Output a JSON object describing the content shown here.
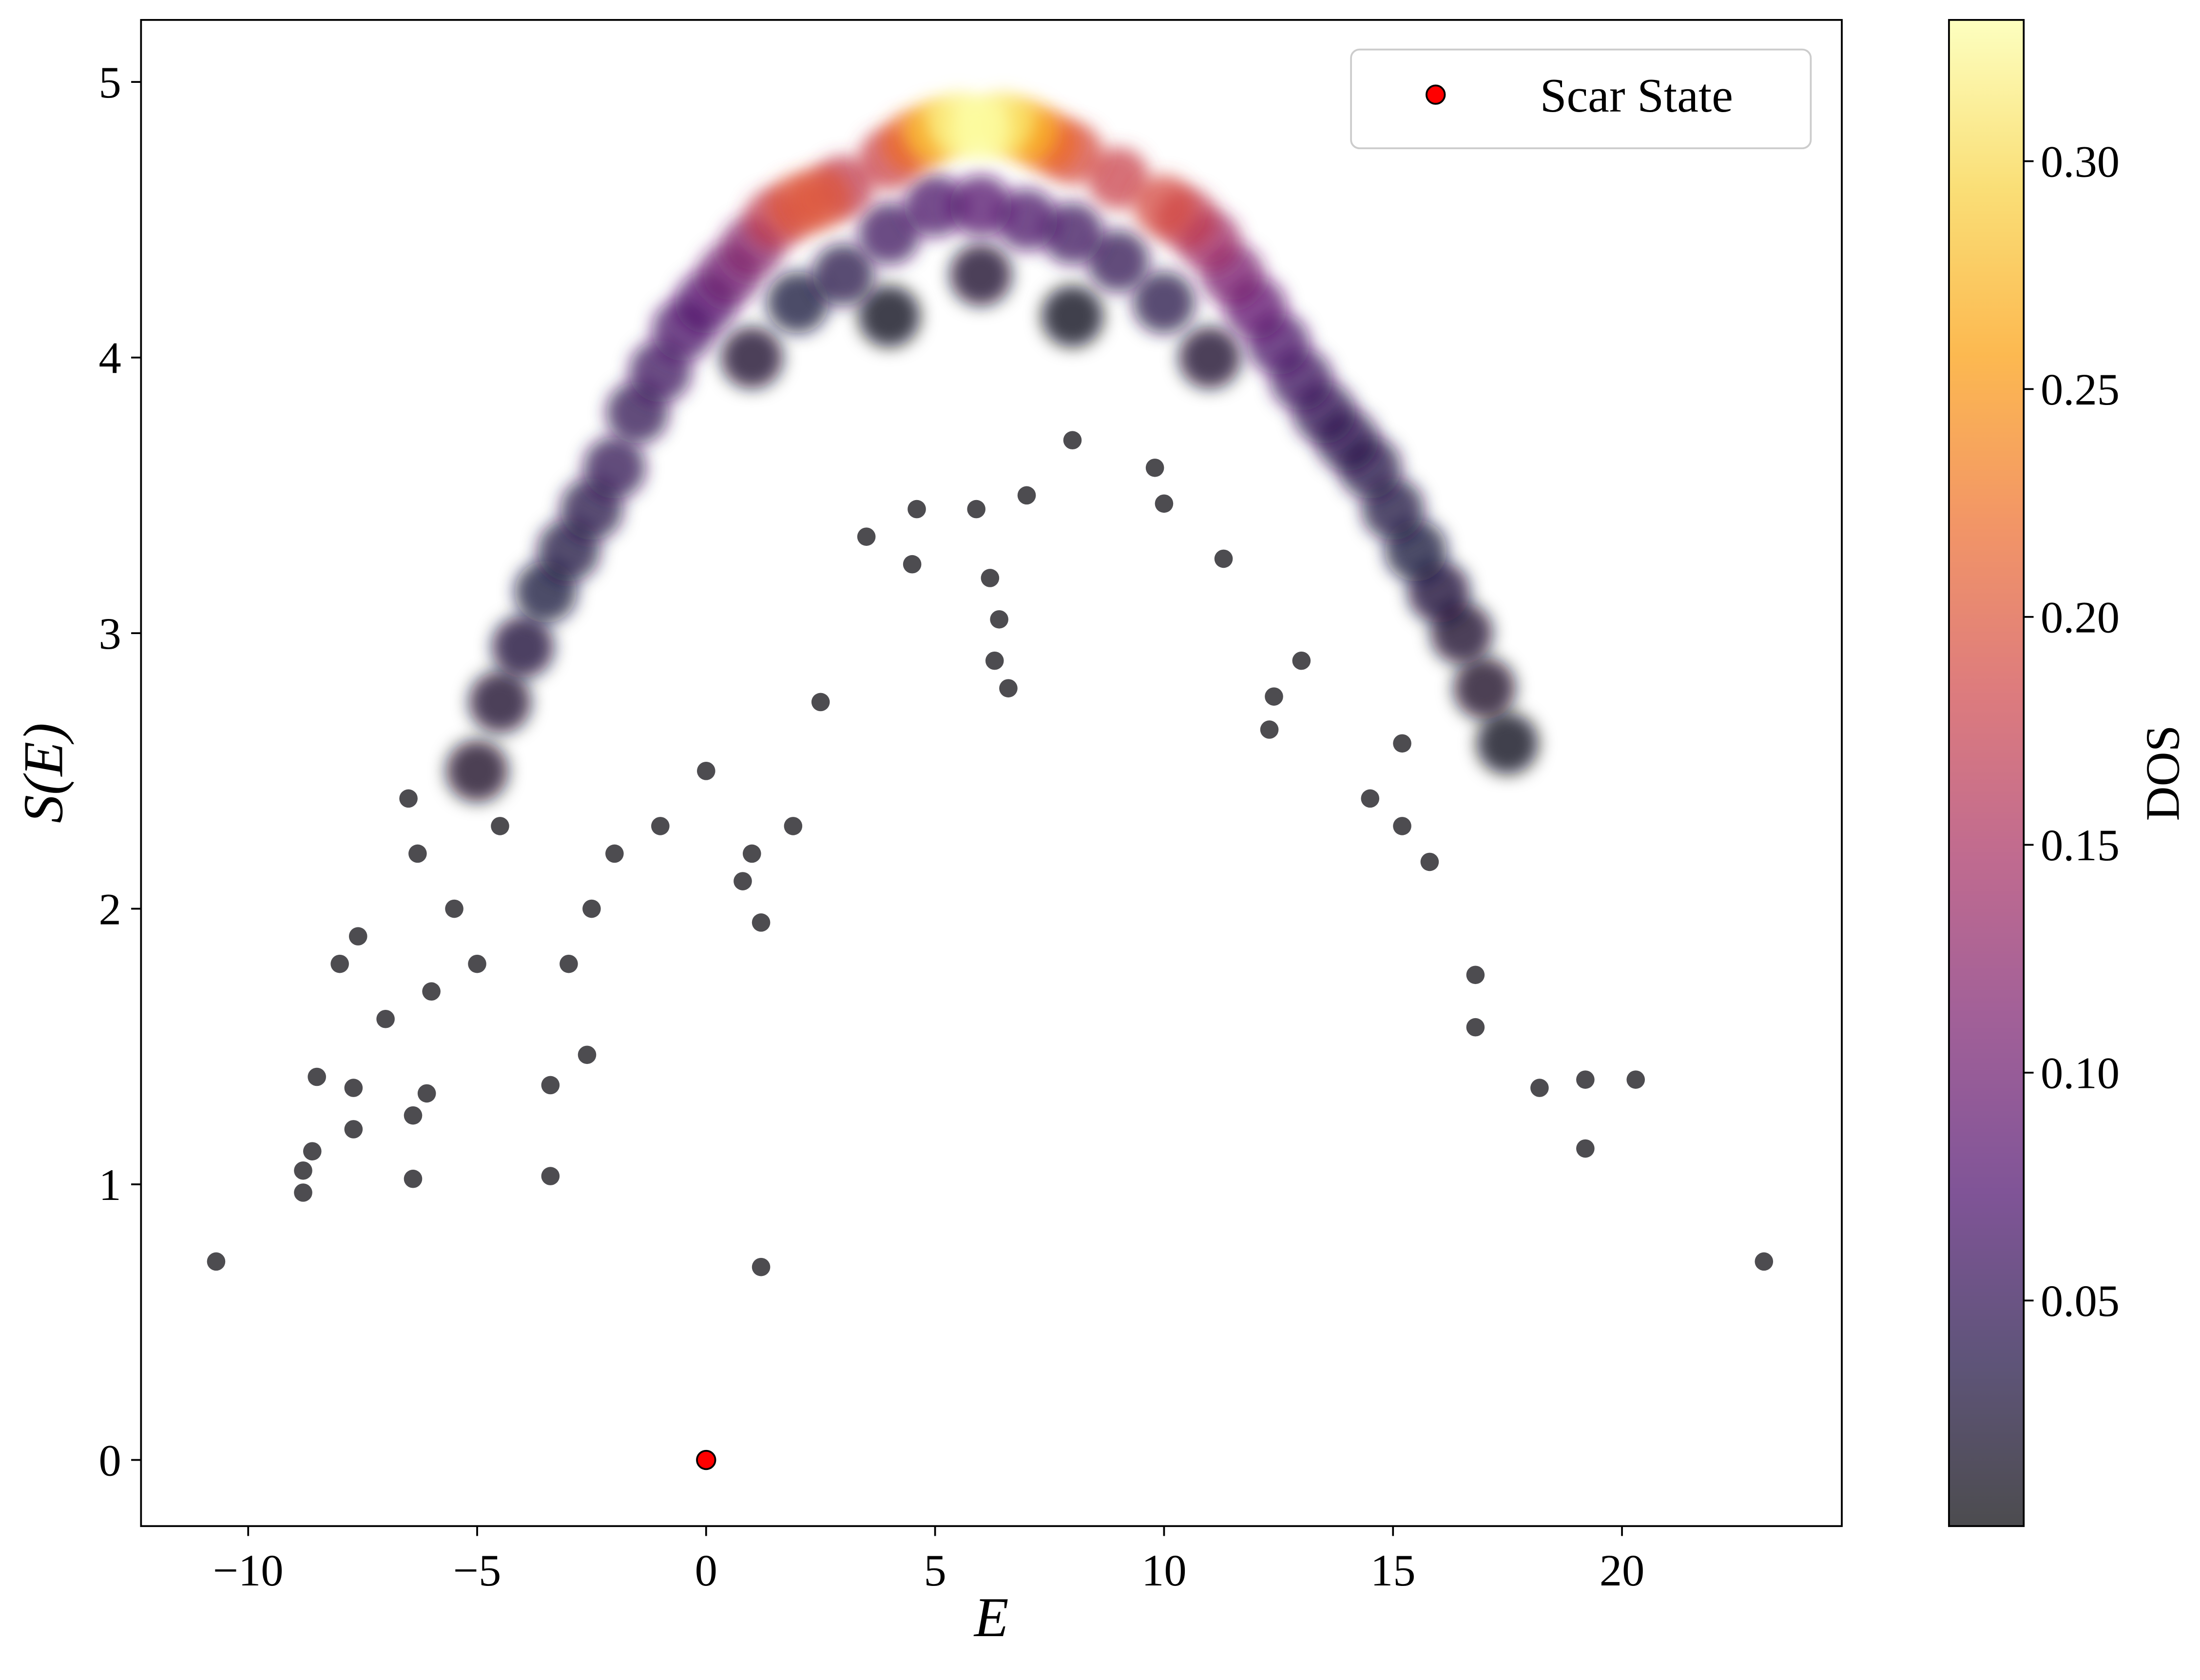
{
  "chart_data": {
    "type": "scatter",
    "xlabel": "E",
    "ylabel": "S(E)",
    "xlim": [
      -12.34,
      24.8
    ],
    "ylim": [
      -0.24,
      5.225
    ],
    "xticks": [
      {
        "value": -10,
        "label": "−10"
      },
      {
        "value": -5,
        "label": "−5"
      },
      0,
      5,
      10,
      15,
      20
    ],
    "yticks": [
      0,
      1,
      2,
      3,
      4,
      5
    ],
    "legend": "upper right",
    "series": [
      {
        "name": "Scar State",
        "color": "#ff0000",
        "x": [
          0
        ],
        "values": [
          0
        ]
      }
    ],
    "points": {
      "x": [
        -10.7,
        23.1,
        1.2,
        -8.8,
        -8.8,
        -8.6,
        -8.5,
        -7.7,
        -7.7,
        -6.4,
        -6.4,
        -6.1,
        -3.4,
        -3.4,
        -2.6,
        -8,
        -7.6,
        -7,
        -6.5,
        -6.3,
        -6,
        -5.5,
        -5,
        -4.5,
        -3,
        -2.5,
        -2,
        -1,
        0,
        1,
        1.2,
        0.8,
        1.9,
        2.5,
        3.5,
        4.5,
        4.6,
        5.9,
        6.2,
        6.3,
        6.4,
        6.6,
        7,
        8,
        9.8,
        10,
        11.3,
        12.3,
        12.4,
        13,
        14.5,
        15.2,
        15.2,
        15.8,
        16.8,
        16.8,
        18.2,
        19.2,
        19.2,
        20.3,
        8,
        4,
        6,
        11,
        1,
        17.5,
        -5,
        17,
        16.5,
        -4.5,
        -4,
        16,
        15.5,
        -3.5,
        -3,
        15,
        14.5,
        -2.5,
        2,
        10,
        3,
        9,
        -2,
        14,
        13.5,
        -1.5,
        -1,
        13,
        4,
        8,
        5,
        7,
        12.5,
        -0.5,
        0,
        6,
        12,
        0.5,
        11.5,
        1,
        11,
        1.5,
        3,
        10.5,
        4,
        9,
        8,
        10,
        2,
        2.5,
        4.5,
        7.5,
        7,
        5,
        6.5,
        5.5,
        6
      ],
      "y": [
        0.72,
        0.72,
        0.7,
        1.05,
        0.97,
        1.12,
        1.39,
        1.2,
        1.35,
        1.02,
        1.25,
        1.33,
        1.03,
        1.36,
        1.47,
        1.8,
        1.9,
        1.6,
        2.4,
        2.2,
        1.7,
        2.0,
        1.8,
        2.3,
        1.8,
        2.0,
        2.2,
        2.3,
        2.5,
        2.2,
        1.95,
        2.1,
        2.3,
        2.75,
        3.35,
        3.25,
        3.45,
        3.45,
        3.2,
        2.9,
        3.05,
        2.8,
        3.5,
        3.7,
        3.6,
        3.47,
        3.27,
        2.65,
        2.77,
        2.9,
        2.4,
        2.6,
        2.3,
        2.17,
        1.76,
        1.57,
        1.35,
        1.13,
        1.38,
        1.38,
        4.15,
        4.15,
        4.3,
        4.0,
        4.0,
        2.6,
        2.5,
        2.8,
        3.0,
        2.75,
        2.95,
        3.15,
        3.3,
        3.15,
        3.3,
        3.45,
        3.6,
        3.45,
        4.2,
        4.2,
        4.3,
        4.35,
        3.6,
        3.7,
        3.8,
        3.8,
        3.95,
        3.92,
        4.45,
        4.45,
        4.55,
        4.5,
        4.05,
        4.1,
        4.2,
        4.55,
        4.18,
        4.3,
        4.3,
        4.4,
        4.42,
        4.5,
        4.62,
        4.5,
        4.72,
        4.65,
        4.74,
        4.55,
        4.55,
        4.58,
        4.78,
        4.78,
        4.82,
        4.82,
        4.85,
        4.85,
        4.83
      ],
      "dos": [
        0.002,
        0.002,
        0.002,
        0.002,
        0.002,
        0.002,
        0.002,
        0.002,
        0.002,
        0.002,
        0.002,
        0.002,
        0.002,
        0.002,
        0.002,
        0.002,
        0.002,
        0.002,
        0.002,
        0.002,
        0.002,
        0.002,
        0.002,
        0.002,
        0.002,
        0.002,
        0.002,
        0.002,
        0.002,
        0.002,
        0.002,
        0.002,
        0.002,
        0.002,
        0.002,
        0.002,
        0.002,
        0.002,
        0.002,
        0.002,
        0.002,
        0.002,
        0.002,
        0.002,
        0.002,
        0.002,
        0.002,
        0.002,
        0.002,
        0.002,
        0.002,
        0.002,
        0.002,
        0.002,
        0.002,
        0.002,
        0.002,
        0.002,
        0.002,
        0.002,
        0.01,
        0.01,
        0.02,
        0.02,
        0.02,
        0.01,
        0.015,
        0.015,
        0.02,
        0.02,
        0.025,
        0.025,
        0.03,
        0.03,
        0.035,
        0.035,
        0.04,
        0.04,
        0.03,
        0.04,
        0.04,
        0.05,
        0.05,
        0.045,
        0.05,
        0.05,
        0.06,
        0.06,
        0.06,
        0.06,
        0.07,
        0.07,
        0.07,
        0.07,
        0.08,
        0.08,
        0.09,
        0.1,
        0.11,
        0.12,
        0.14,
        0.17,
        0.17,
        0.17,
        0.18,
        0.18,
        0.19,
        0.19,
        0.2,
        0.2,
        0.22,
        0.22,
        0.27,
        0.28,
        0.31,
        0.32,
        0.33
      ]
    },
    "colorbar": {
      "label": "DOS",
      "lim": [
        0.0005,
        0.331
      ],
      "ticks": [
        0.05,
        {
          "value": 0.1,
          "label": "0.10"
        },
        0.15,
        {
          "value": 0.2,
          "label": "0.20"
        },
        0.25,
        {
          "value": 0.3,
          "label": "0.30"
        }
      ],
      "colors": [
        "#000004",
        "#1b0c41",
        "#4a0c6b",
        "#781c6d",
        "#a52c60",
        "#cf4446",
        "#ed6925",
        "#fb9b06",
        "#f7d13d",
        "#fcffa4"
      ]
    }
  }
}
